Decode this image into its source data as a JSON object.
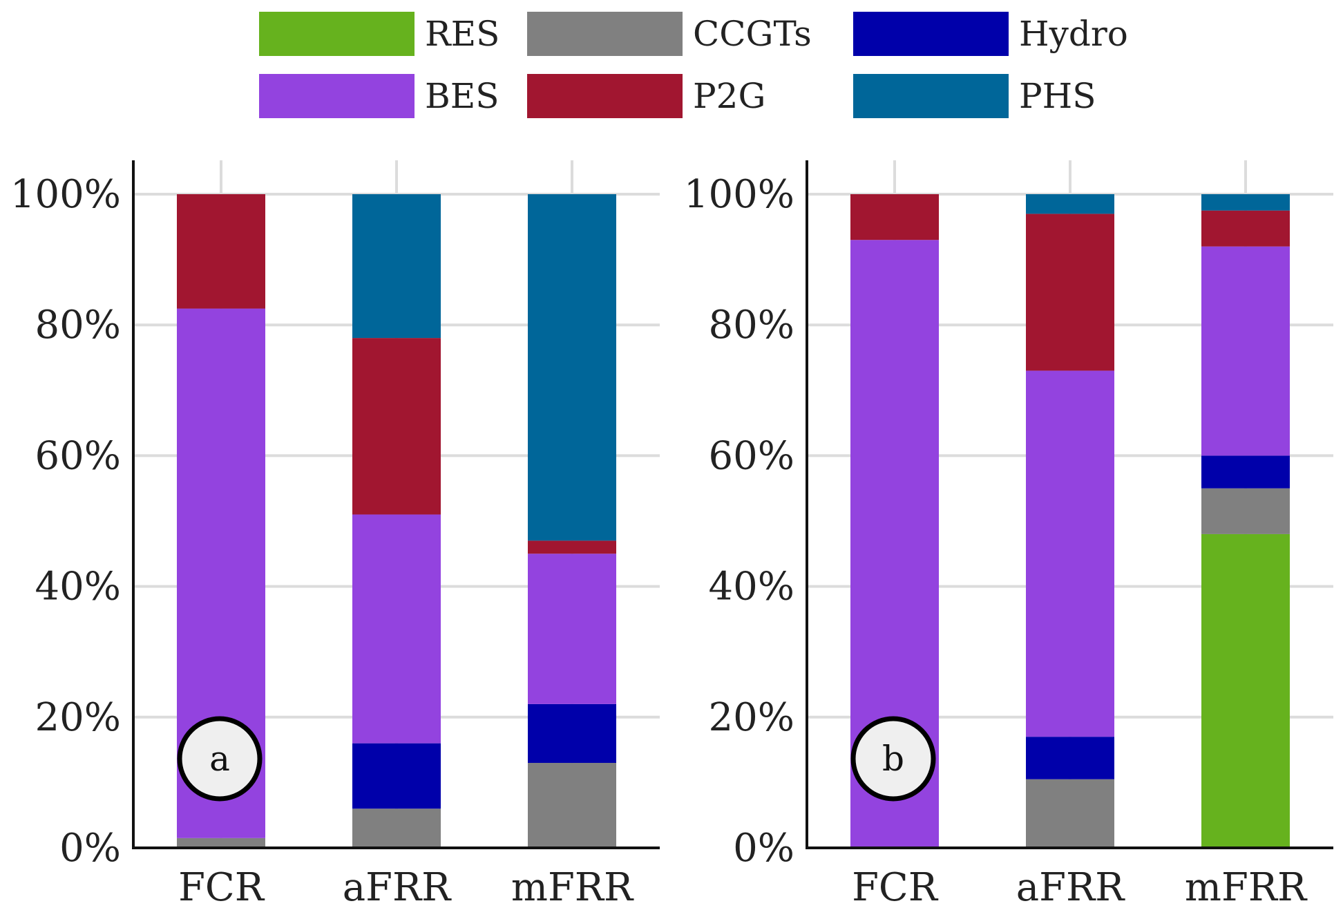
{
  "legend": [
    {
      "name": "RES",
      "color": "#66b21e"
    },
    {
      "name": "CCGTs",
      "color": "#808080"
    },
    {
      "name": "Hydro",
      "color": "#0000aa"
    },
    {
      "name": "BES",
      "color": "#9343df"
    },
    {
      "name": "P2G",
      "color": "#a11630"
    },
    {
      "name": "PHS",
      "color": "#006699"
    }
  ],
  "chart_data": [
    {
      "type": "bar",
      "stacked": true,
      "panel_label": "a",
      "categories": [
        "FCR",
        "aFRR",
        "mFRR"
      ],
      "yticks": [
        "0%",
        "20%",
        "40%",
        "60%",
        "80%",
        "100%"
      ],
      "ylim": [
        0,
        100
      ],
      "grid": true,
      "series": [
        {
          "name": "RES",
          "values": [
            0,
            0,
            0
          ]
        },
        {
          "name": "CCGTs",
          "values": [
            1.5,
            6,
            13
          ]
        },
        {
          "name": "Hydro",
          "values": [
            0,
            10,
            9
          ]
        },
        {
          "name": "BES",
          "values": [
            81,
            35,
            23
          ]
        },
        {
          "name": "P2G",
          "values": [
            17.5,
            27,
            2
          ]
        },
        {
          "name": "PHS",
          "values": [
            0,
            22,
            53
          ]
        }
      ]
    },
    {
      "type": "bar",
      "stacked": true,
      "panel_label": "b",
      "categories": [
        "FCR",
        "aFRR",
        "mFRR"
      ],
      "yticks": [
        "0%",
        "20%",
        "40%",
        "60%",
        "80%",
        "100%"
      ],
      "ylim": [
        0,
        100
      ],
      "grid": true,
      "series": [
        {
          "name": "RES",
          "values": [
            0,
            0,
            48
          ]
        },
        {
          "name": "CCGTs",
          "values": [
            0,
            10.5,
            7
          ]
        },
        {
          "name": "Hydro",
          "values": [
            0,
            6.5,
            5
          ]
        },
        {
          "name": "BES",
          "values": [
            93,
            56,
            32
          ]
        },
        {
          "name": "P2G",
          "values": [
            7,
            24,
            5.5
          ]
        },
        {
          "name": "PHS",
          "values": [
            0,
            3,
            2.5
          ]
        }
      ]
    }
  ]
}
